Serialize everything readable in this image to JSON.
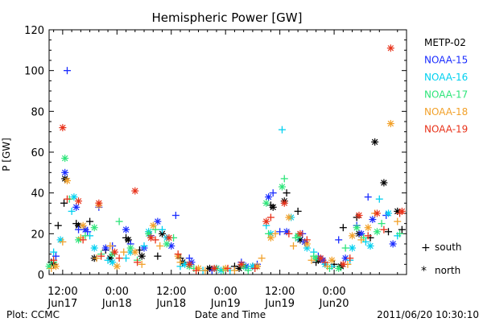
{
  "footer": {
    "left": "Plot: CCMC",
    "center": "Date and Time",
    "right": "2011/06/20 10:30:10"
  },
  "legend": {
    "series": [
      {
        "name": "METP-02",
        "color": "#000000"
      },
      {
        "name": "NOAA-15",
        "color": "#1a2cff"
      },
      {
        "name": "NOAA-16",
        "color": "#00d0f0"
      },
      {
        "name": "NOAA-17",
        "color": "#2ee57a"
      },
      {
        "name": "NOAA-18",
        "color": "#f2a12a"
      },
      {
        "name": "NOAA-19",
        "color": "#e8321a"
      }
    ],
    "markers": [
      {
        "symbol": "+",
        "label": "south"
      },
      {
        "symbol": "*",
        "label": "north"
      }
    ]
  },
  "chart_data": {
    "type": "scatter",
    "title": "Hemispheric Power [GW]",
    "ylabel": "P [GW]",
    "xlabel": "Date and Time",
    "ylim": [
      0,
      120
    ],
    "yticks": [
      0,
      20,
      40,
      60,
      80,
      100,
      120
    ],
    "x_unit": "hours since 2011-06-17 00:00",
    "xlim": [
      9,
      88
    ],
    "xticks": [
      {
        "x": 12,
        "time": "12:00",
        "date": "Jun17"
      },
      {
        "x": 24,
        "time": "0:00",
        "date": "Jun18"
      },
      {
        "x": 36,
        "time": "12:00",
        "date": "Jun18"
      },
      {
        "x": 48,
        "time": "0:00",
        "date": "Jun19"
      },
      {
        "x": 60,
        "time": "12:00",
        "date": "Jun19"
      },
      {
        "x": 72,
        "time": "0:00",
        "date": "Jun20"
      }
    ],
    "grid": false,
    "legend_position": "right",
    "series": [
      {
        "name": "METP-02",
        "color": "#000000",
        "south": [
          [
            9.5,
            6
          ],
          [
            11,
            24
          ],
          [
            12.3,
            35
          ],
          [
            15,
            25
          ],
          [
            18,
            26
          ],
          [
            21.5,
            12
          ],
          [
            26,
            18
          ],
          [
            29,
            12
          ],
          [
            33,
            9
          ],
          [
            38,
            8
          ],
          [
            44,
            2
          ],
          [
            50,
            4
          ],
          [
            54,
            4
          ],
          [
            58,
            34
          ],
          [
            61.5,
            40
          ],
          [
            64,
            31
          ],
          [
            68,
            6
          ],
          [
            72,
            5
          ],
          [
            74,
            23
          ],
          [
            77,
            28
          ],
          [
            80,
            18
          ],
          [
            84,
            21
          ],
          [
            87,
            22
          ]
        ],
        "north": [
          [
            10,
            5
          ],
          [
            12.5,
            47
          ],
          [
            15.5,
            24
          ],
          [
            19,
            8
          ],
          [
            22.5,
            8
          ],
          [
            26.5,
            17
          ],
          [
            29.5,
            9
          ],
          [
            34,
            20
          ],
          [
            38.5,
            6
          ],
          [
            44.5,
            3
          ],
          [
            51,
            3
          ],
          [
            55,
            4
          ],
          [
            58.5,
            33
          ],
          [
            61,
            36
          ],
          [
            64.5,
            17
          ],
          [
            68.5,
            7
          ],
          [
            73.5,
            4
          ],
          [
            77.5,
            20
          ],
          [
            81,
            65
          ],
          [
            83,
            45
          ],
          [
            86,
            31
          ]
        ]
      },
      {
        "name": "NOAA-15",
        "color": "#1a2cff",
        "south": [
          [
            10.5,
            9
          ],
          [
            13,
            100
          ],
          [
            15.5,
            22
          ],
          [
            17.5,
            21
          ],
          [
            20,
            33
          ],
          [
            23,
            14
          ],
          [
            27,
            15
          ],
          [
            31.5,
            19
          ],
          [
            37,
            29
          ],
          [
            40,
            8
          ],
          [
            45,
            2
          ],
          [
            51.5,
            6
          ],
          [
            55,
            5
          ],
          [
            58.5,
            40
          ],
          [
            60,
            21
          ],
          [
            65,
            20
          ],
          [
            68.5,
            9
          ],
          [
            73,
            17
          ],
          [
            77,
            24
          ],
          [
            79.5,
            38
          ],
          [
            83.5,
            29
          ]
        ],
        "north": [
          [
            12.5,
            50
          ],
          [
            15,
            33
          ],
          [
            17,
            22
          ],
          [
            21.5,
            13
          ],
          [
            26,
            22
          ],
          [
            30,
            13
          ],
          [
            33,
            26
          ],
          [
            36,
            14
          ],
          [
            40.5,
            6
          ],
          [
            46,
            3
          ],
          [
            52.5,
            4
          ],
          [
            57.5,
            38
          ],
          [
            61.5,
            21
          ],
          [
            65.5,
            16
          ],
          [
            69.5,
            7
          ],
          [
            74.5,
            8
          ],
          [
            78,
            20
          ],
          [
            80.5,
            27
          ],
          [
            85,
            15
          ]
        ]
      },
      {
        "name": "NOAA-16",
        "color": "#00d0f0",
        "south": [
          [
            10,
            11
          ],
          [
            14,
            31
          ],
          [
            18,
            19
          ],
          [
            22,
            7
          ],
          [
            26,
            8
          ],
          [
            30,
            14
          ],
          [
            34,
            22
          ],
          [
            38,
            4
          ],
          [
            43,
            2
          ],
          [
            49,
            2
          ],
          [
            53,
            3
          ],
          [
            57,
            24
          ],
          [
            60.5,
            71
          ],
          [
            64,
            18
          ],
          [
            67.5,
            11
          ],
          [
            71.5,
            4
          ],
          [
            75.5,
            7
          ],
          [
            79,
            16
          ],
          [
            82,
            37
          ],
          [
            86,
            19
          ]
        ],
        "north": [
          [
            11.5,
            17
          ],
          [
            14.5,
            38
          ],
          [
            19,
            13
          ],
          [
            23,
            6
          ],
          [
            27,
            11
          ],
          [
            31,
            21
          ],
          [
            35,
            18
          ],
          [
            39,
            5
          ],
          [
            47,
            2
          ],
          [
            54,
            4
          ],
          [
            58,
            20
          ],
          [
            62.5,
            28
          ],
          [
            66,
            13
          ],
          [
            70,
            5
          ],
          [
            76,
            13
          ],
          [
            80,
            14
          ],
          [
            84,
            30
          ]
        ]
      },
      {
        "name": "NOAA-17",
        "color": "#2ee57a",
        "south": [
          [
            10,
            6
          ],
          [
            13.5,
            37
          ],
          [
            17,
            19
          ],
          [
            20.5,
            10
          ],
          [
            24.5,
            26
          ],
          [
            28.5,
            7
          ],
          [
            32.5,
            22
          ],
          [
            36.5,
            18
          ],
          [
            41,
            3
          ],
          [
            47.5,
            2
          ],
          [
            53,
            2
          ],
          [
            57.5,
            20
          ],
          [
            61,
            47
          ],
          [
            63.5,
            18
          ],
          [
            67.5,
            9
          ],
          [
            71,
            3
          ],
          [
            74.5,
            13
          ],
          [
            78.5,
            18
          ],
          [
            82.5,
            25
          ],
          [
            86.5,
            20
          ]
        ],
        "north": [
          [
            9,
            4
          ],
          [
            12.5,
            57
          ],
          [
            15.5,
            17
          ],
          [
            19,
            23
          ],
          [
            23,
            10
          ],
          [
            27,
            13
          ],
          [
            31,
            20
          ],
          [
            35,
            15
          ],
          [
            40,
            4
          ],
          [
            46,
            3
          ],
          [
            52,
            4
          ],
          [
            57,
            35
          ],
          [
            60.5,
            43
          ],
          [
            64,
            19
          ],
          [
            68,
            8
          ],
          [
            73,
            3
          ],
          [
            77,
            23
          ],
          [
            81.5,
            21
          ]
        ]
      },
      {
        "name": "NOAA-18",
        "color": "#f2a12a",
        "south": [
          [
            9.5,
            3
          ],
          [
            12,
            16
          ],
          [
            16,
            18
          ],
          [
            19.5,
            8
          ],
          [
            22.5,
            14
          ],
          [
            25.5,
            11
          ],
          [
            29.5,
            5
          ],
          [
            33.5,
            14
          ],
          [
            38,
            6
          ],
          [
            43.5,
            2
          ],
          [
            50,
            2
          ],
          [
            56,
            8
          ],
          [
            59,
            20
          ],
          [
            63,
            14
          ],
          [
            67,
            7
          ],
          [
            70.5,
            4
          ],
          [
            75,
            5
          ],
          [
            78,
            17
          ],
          [
            81,
            30
          ],
          [
            86,
            26
          ]
        ],
        "north": [
          [
            10.5,
            4
          ],
          [
            13,
            46
          ],
          [
            16.5,
            24
          ],
          [
            20,
            34
          ],
          [
            24,
            4
          ],
          [
            28,
            11
          ],
          [
            32,
            24
          ],
          [
            37.5,
            9
          ],
          [
            42,
            3
          ],
          [
            48,
            3
          ],
          [
            55,
            4
          ],
          [
            58,
            18
          ],
          [
            62,
            28
          ],
          [
            66,
            15
          ],
          [
            71.5,
            7
          ],
          [
            76,
            19
          ],
          [
            79.5,
            23
          ],
          [
            84.5,
            74
          ]
        ]
      },
      {
        "name": "NOAA-19",
        "color": "#e8321a",
        "south": [
          [
            10,
            7
          ],
          [
            13,
            37
          ],
          [
            16.5,
            17
          ],
          [
            20.5,
            9
          ],
          [
            24.5,
            8
          ],
          [
            28.5,
            6
          ],
          [
            32.5,
            17
          ],
          [
            37.5,
            10
          ],
          [
            41.5,
            2
          ],
          [
            48.5,
            3
          ],
          [
            54.5,
            3
          ],
          [
            58,
            28
          ],
          [
            62,
            20
          ],
          [
            66,
            17
          ],
          [
            70,
            6
          ],
          [
            75.5,
            8
          ],
          [
            79.5,
            19
          ],
          [
            83,
            22
          ],
          [
            86.5,
            30
          ]
        ],
        "north": [
          [
            12,
            72
          ],
          [
            15.5,
            36
          ],
          [
            20,
            35
          ],
          [
            23.5,
            11
          ],
          [
            28,
            41
          ],
          [
            31.5,
            18
          ],
          [
            35.5,
            18
          ],
          [
            40,
            5
          ],
          [
            45.5,
            3
          ],
          [
            51.5,
            5
          ],
          [
            57,
            26
          ],
          [
            61,
            35
          ],
          [
            64.5,
            20
          ],
          [
            69,
            8
          ],
          [
            74,
            5
          ],
          [
            77.5,
            29
          ],
          [
            81.5,
            30
          ],
          [
            84.5,
            111
          ],
          [
            87,
            31
          ]
        ]
      }
    ]
  }
}
